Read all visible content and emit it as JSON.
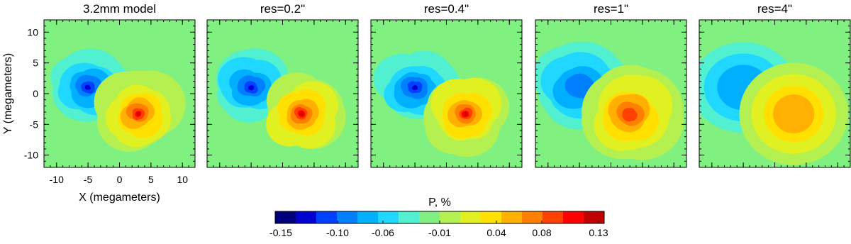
{
  "chart_data": {
    "type": "map-panels",
    "panels": [
      {
        "title": "3.2mm model"
      },
      {
        "title": "res=0.2\""
      },
      {
        "title": "res=0.4\""
      },
      {
        "title": "res=1\""
      },
      {
        "title": "res=4\""
      }
    ],
    "xlabel": "X (megameters)",
    "ylabel": "Y (megameters)",
    "xlim": [
      -12,
      12
    ],
    "ylim": [
      -12,
      12
    ],
    "xticks": [
      -10,
      -5,
      0,
      5,
      10
    ],
    "yticks": [
      -10,
      -5,
      0,
      5,
      10
    ],
    "colorbar": {
      "label": "P, %",
      "clim": [
        -0.155,
        0.135
      ],
      "colors": [
        "#00007f",
        "#0000d0",
        "#0040ff",
        "#0080ff",
        "#00b0ff",
        "#20d8ff",
        "#50f0d0",
        "#80f080",
        "#b4f050",
        "#e0f020",
        "#ffe000",
        "#ffb000",
        "#ff8000",
        "#ff4000",
        "#ff0000",
        "#c00000"
      ],
      "ticks": [
        -0.15,
        {
          "value": -0.1,
          "label": "-0.10"
        },
        -0.06,
        -0.01,
        0.04,
        0.08,
        0.13
      ]
    }
  }
}
